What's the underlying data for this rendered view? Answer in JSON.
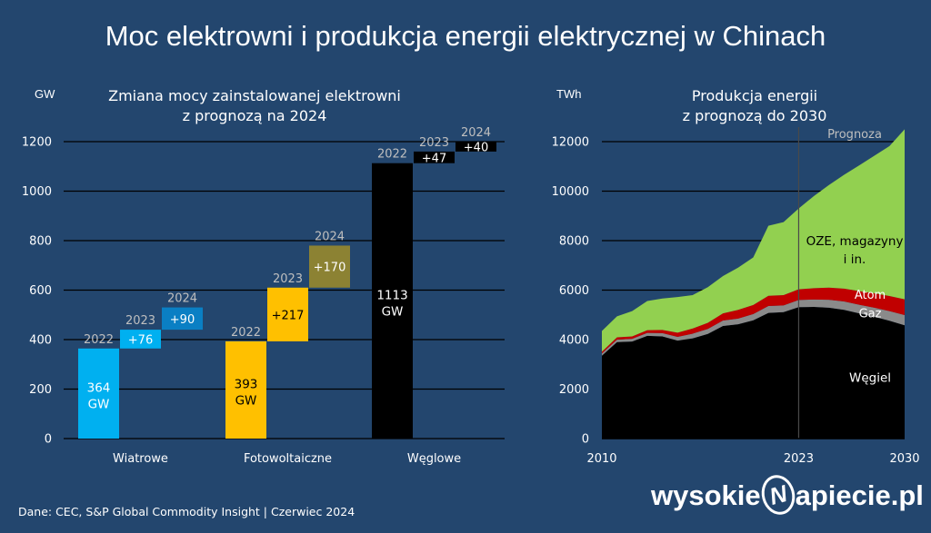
{
  "title": "Moc elektrowni i produkcja energii elektrycznej w Chinach",
  "left_chart": {
    "title_line1": "Zmiana mocy zainstalowanej elektrowni",
    "title_line2": "z prognozą na 2024",
    "unit": "GW"
  },
  "right_chart": {
    "title_line1": "Produkcja energii",
    "title_line2": "z prognozą do 2030",
    "unit": "TWh",
    "forecast_label": "Prognoza"
  },
  "source": "Dane: CEC, S&P Global Commodity Insight  |  Czerwiec 2024",
  "logo": {
    "part1": "wysokie",
    "emblem": "N",
    "part2": "apiecie.pl"
  },
  "colors": {
    "background": "#23466e",
    "wind": "#00b0f0",
    "wind_forecast": "#0a7fc4",
    "solar": "#ffc000",
    "solar_forecast": "#8c8233",
    "coal": "#000000",
    "renewables": "#92d050",
    "nuclear": "#c00000",
    "gas": "#8a8a8a"
  },
  "chart_data": [
    {
      "type": "bar",
      "ylim": [
        0,
        1200
      ],
      "yticks": [
        0,
        200,
        400,
        600,
        800,
        1000,
        1200
      ],
      "groups": [
        {
          "category": "Wiatrowe",
          "bars": [
            {
              "year": "2022",
              "base": 0,
              "value": 364,
              "label_line1": "364",
              "label_line2": "GW",
              "color": "#00b0f0"
            },
            {
              "year": "2023",
              "base": 364,
              "value": 76,
              "label_line1": "+76",
              "color": "#00b0f0"
            },
            {
              "year": "2024",
              "base": 440,
              "value": 90,
              "label_line1": "+90",
              "color": "#0a7fc4"
            }
          ]
        },
        {
          "category": "Fotowoltaiczne",
          "bars": [
            {
              "year": "2022",
              "base": 0,
              "value": 393,
              "label_line1": "393",
              "label_line2": "GW",
              "color": "#ffc000",
              "text_color": "#000000"
            },
            {
              "year": "2023",
              "base": 393,
              "value": 217,
              "label_line1": "+217",
              "color": "#ffc000",
              "text_color": "#000000"
            },
            {
              "year": "2024",
              "base": 610,
              "value": 170,
              "label_line1": "+170",
              "color": "#8c8233"
            }
          ]
        },
        {
          "category": "Węglowe",
          "bars": [
            {
              "year": "2022",
              "base": 0,
              "value": 1113,
              "label_line1": "1113",
              "label_line2": "GW",
              "color": "#000000"
            },
            {
              "year": "2023",
              "base": 1113,
              "value": 47,
              "label_line1": "+47",
              "color": "#000000"
            },
            {
              "year": "2024",
              "base": 1160,
              "value": 40,
              "label_line1": "+40",
              "color": "#000000"
            }
          ]
        }
      ]
    },
    {
      "type": "area",
      "stacked": true,
      "xlim": [
        2010,
        2030
      ],
      "ylim": [
        0,
        12000
      ],
      "xticks": [
        2010,
        2023,
        2030
      ],
      "yticks": [
        0,
        2000,
        4000,
        6000,
        8000,
        10000,
        12000
      ],
      "forecast_start": 2023,
      "x": [
        2010,
        2011,
        2012,
        2013,
        2014,
        2015,
        2016,
        2017,
        2018,
        2019,
        2020,
        2021,
        2022,
        2023,
        2024,
        2025,
        2026,
        2027,
        2028,
        2029,
        2030
      ],
      "series": [
        {
          "name": "Węgiel",
          "color": "#000000",
          "values": [
            3350,
            3900,
            3920,
            4150,
            4130,
            3960,
            4050,
            4230,
            4550,
            4620,
            4780,
            5080,
            5110,
            5310,
            5320,
            5290,
            5200,
            5060,
            4920,
            4760,
            4580
          ]
        },
        {
          "name": "Gaz",
          "color": "#8a8a8a",
          "values": [
            90,
            100,
            110,
            120,
            130,
            150,
            190,
            200,
            220,
            230,
            250,
            280,
            270,
            290,
            300,
            320,
            340,
            350,
            370,
            390,
            410
          ]
        },
        {
          "name": "Atom",
          "color": "#c00000",
          "values": [
            70,
            90,
            100,
            110,
            130,
            170,
            210,
            250,
            290,
            350,
            370,
            410,
            420,
            430,
            460,
            490,
            520,
            550,
            580,
            610,
            640
          ]
        },
        {
          "name": "OZE, magazyny i in.",
          "color": "#92d050",
          "values": [
            840,
            850,
            1020,
            1180,
            1270,
            1440,
            1350,
            1440,
            1510,
            1710,
            1920,
            2830,
            2950,
            3270,
            3720,
            4150,
            4600,
            5080,
            5560,
            6060,
            6870
          ]
        }
      ]
    }
  ]
}
